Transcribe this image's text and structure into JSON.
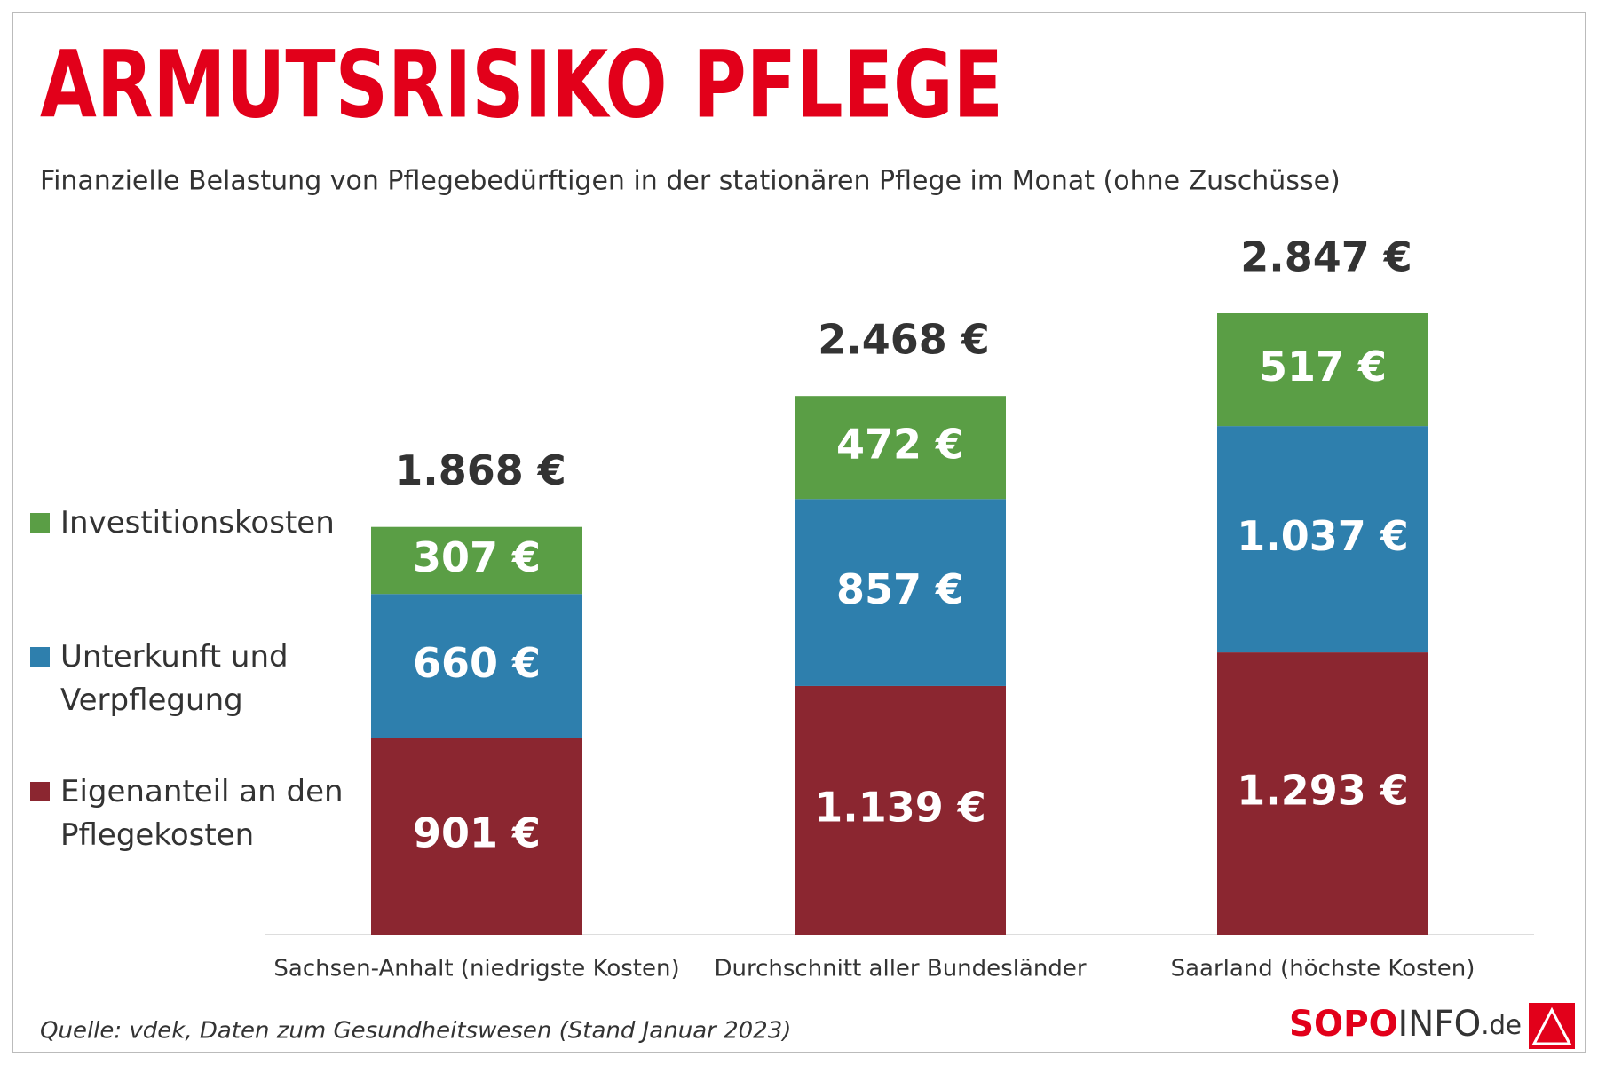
{
  "chart_data": {
    "type": "stacked-bar",
    "title": "ARMUTSRISIKO PFLEGE",
    "subtitle": "Finanzielle Belastung von Pflegebedürftigen  in der stationären Pflege im Monat (ohne Zuschüsse)",
    "categories": [
      "Sachsen-Anhalt (niedrigste Kosten)",
      "Durchschnitt aller Bundesländer",
      "Saarland (höchste Kosten)"
    ],
    "series": [
      {
        "name": "Eigenanteil an den Pflegekosten",
        "color": "#8b2630",
        "values": [
          901,
          1139,
          1293
        ],
        "value_labels": [
          "901 €",
          "1.139 €",
          "1.293 €"
        ]
      },
      {
        "name": "Unterkunft und Verpflegung",
        "color": "#2e7fad",
        "values": [
          660,
          857,
          1037
        ],
        "value_labels": [
          "660 €",
          "857 €",
          "1.037 €"
        ]
      },
      {
        "name": "Investitionskosten",
        "color": "#5a9e45",
        "values": [
          307,
          472,
          517
        ],
        "value_labels": [
          "307 €",
          "472 €",
          "517 €"
        ]
      }
    ],
    "totals": {
      "values": [
        1868,
        2468,
        2847
      ],
      "value_labels": [
        "1.868 €",
        "2.468 €",
        "2.847 €"
      ]
    },
    "legend": "left",
    "source": "Quelle: vdek, Daten zum Gesundheitswesen (Stand Januar 2023)",
    "brand": [
      "SOPO",
      "INFO",
      ".de"
    ]
  }
}
